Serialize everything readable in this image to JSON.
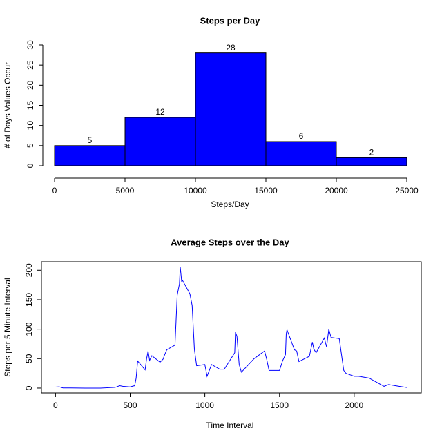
{
  "chart_data": [
    {
      "type": "histogram",
      "title": "Steps per Day",
      "x_label": "Steps/Day",
      "y_label": "# of Days Values Occur",
      "bins": [
        0,
        5000,
        10000,
        15000,
        20000,
        25000
      ],
      "values": [
        5,
        12,
        28,
        6,
        2
      ],
      "color": "#0000ff",
      "xlim": [
        0,
        25000
      ],
      "xticks": [
        0,
        5000,
        10000,
        15000,
        20000,
        25000
      ],
      "ylim": [
        0,
        30
      ],
      "yticks": [
        0,
        5,
        10,
        15,
        20,
        25,
        30
      ]
    },
    {
      "type": "line",
      "title": "Average Steps over the Day",
      "x_label": "Time Interval",
      "y_label": "Steps per 5 Minute Interval",
      "x": [
        0,
        25,
        50,
        100,
        200,
        300,
        400,
        430,
        450,
        500,
        520,
        530,
        540,
        550,
        600,
        610,
        620,
        630,
        645,
        700,
        720,
        730,
        745,
        800,
        815,
        830,
        835,
        845,
        850,
        900,
        915,
        930,
        945,
        1000,
        1015,
        1030,
        1045,
        1100,
        1130,
        1200,
        1205,
        1215,
        1230,
        1245,
        1300,
        1330,
        1400,
        1415,
        1430,
        1500,
        1520,
        1540,
        1545,
        1550,
        1600,
        1615,
        1630,
        1700,
        1720,
        1730,
        1745,
        1800,
        1815,
        1830,
        1845,
        1900,
        1930,
        1945,
        2000,
        2030,
        2100,
        2200,
        2230,
        2300,
        2355
      ],
      "values": [
        1.7,
        2.1,
        0.3,
        0.3,
        0,
        0,
        1.2,
        4,
        3,
        2,
        3.5,
        4,
        17,
        46,
        31,
        50,
        63,
        47,
        55,
        44,
        49,
        56,
        65,
        73,
        158,
        177,
        206,
        180,
        183,
        160,
        140,
        66,
        38,
        40,
        20,
        30,
        40,
        32,
        32,
        60,
        95,
        88,
        40,
        27,
        42,
        50,
        63,
        48,
        30,
        30,
        46,
        57,
        92,
        99,
        65,
        63,
        45,
        54,
        78,
        66,
        60,
        85,
        70,
        100,
        86,
        84,
        30,
        25,
        20,
        20,
        17,
        3,
        6,
        3,
        1
      ],
      "color": "#0000ff",
      "xlim": [
        -94.2,
        2449.2
      ],
      "xticks": [
        0,
        500,
        1000,
        1500,
        2000
      ],
      "ylim": [
        -8.25,
        214.4
      ],
      "yticks": [
        0,
        50,
        100,
        150,
        200
      ],
      "box": true
    }
  ]
}
